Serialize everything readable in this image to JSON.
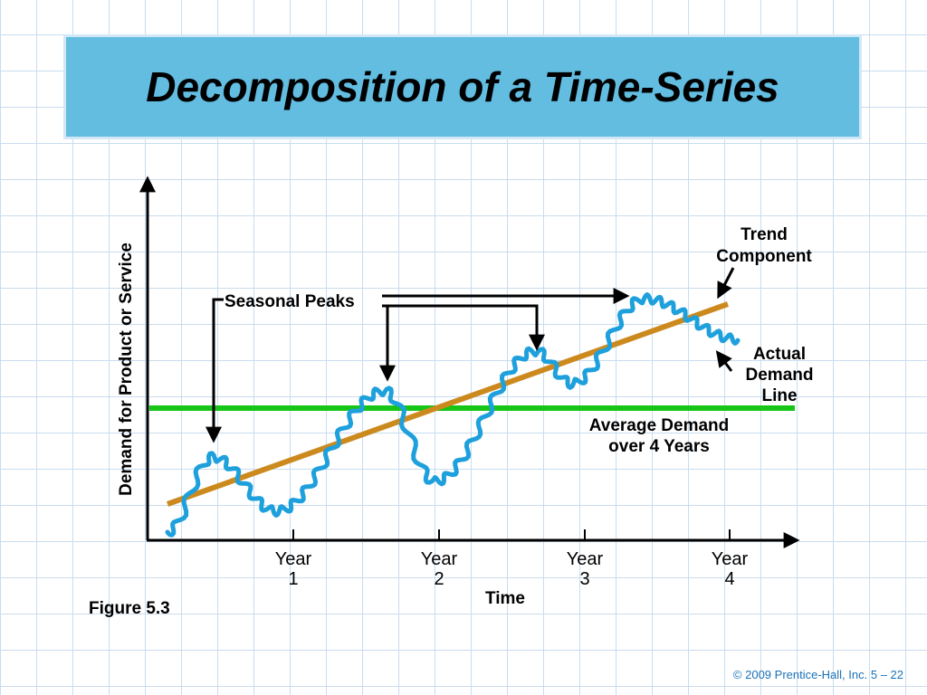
{
  "slide": {
    "title": "Decomposition of a Time-Series",
    "figure_label": "Figure 5.3",
    "copyright": "© 2009 Prentice-Hall, Inc.    5 – 22"
  },
  "diagram": {
    "y_axis_label": "Demand for Product or Service",
    "x_axis_label": "Time",
    "x_ticks": [
      {
        "line1": "Year",
        "line2": "1"
      },
      {
        "line1": "Year",
        "line2": "2"
      },
      {
        "line1": "Year",
        "line2": "3"
      },
      {
        "line1": "Year",
        "line2": "4"
      }
    ],
    "labels": {
      "trend_line1": "Trend",
      "trend_line2": "Component",
      "seasonal": "Seasonal Peaks",
      "actual_line1": "Actual",
      "actual_line2": "Demand",
      "actual_line3": "Line",
      "average_line1": "Average Demand",
      "average_line2": "over 4 Years"
    },
    "colors": {
      "trend": "#cc8a1e",
      "actual": "#1ea0dc",
      "average": "#16c516",
      "banner": "#62bde1",
      "copyright": "#1a72b8"
    }
  }
}
